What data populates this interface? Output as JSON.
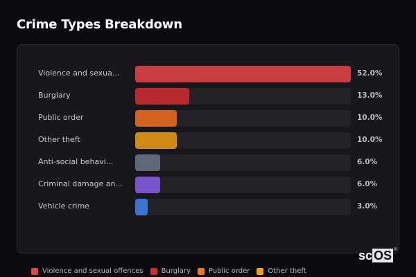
{
  "header": {
    "title": "Crime Types Breakdown"
  },
  "chart_data": {
    "type": "bar",
    "orientation": "horizontal",
    "title": "Crime Types Breakdown",
    "xlabel": "",
    "ylabel": "",
    "xlim": [
      0,
      52
    ],
    "categories": [
      "Violence and sexua...",
      "Burglary",
      "Public order",
      "Other theft",
      "Anti-social behavi...",
      "Criminal damage an...",
      "Vehicle crime"
    ],
    "values": [
      52.0,
      13.0,
      10.0,
      10.0,
      6.0,
      6.0,
      3.0
    ],
    "value_labels": [
      "52.0%",
      "13.0%",
      "10.0%",
      "10.0%",
      "6.0%",
      "6.0%",
      "3.0%"
    ],
    "colors": [
      "#c93c40",
      "#b8282c",
      "#d2621e",
      "#d08a14",
      "#5f6878",
      "#7a52cc",
      "#3a74d4"
    ],
    "legend": [
      "Violence and sexual offences",
      "Burglary",
      "Public order",
      "Other theft"
    ],
    "legend_position": "bottom",
    "grid": false
  },
  "rows": [
    {
      "label": "Violence and sexua...",
      "pct": "52.0%",
      "value": 52.0,
      "color": "#c93c40"
    },
    {
      "label": "Burglary",
      "pct": "13.0%",
      "value": 13.0,
      "color": "#b8282c"
    },
    {
      "label": "Public order",
      "pct": "10.0%",
      "value": 10.0,
      "color": "#d2621e"
    },
    {
      "label": "Other theft",
      "pct": "10.0%",
      "value": 10.0,
      "color": "#d08a14"
    },
    {
      "label": "Anti-social behavi...",
      "pct": "6.0%",
      "value": 6.0,
      "color": "#5f6878"
    },
    {
      "label": "Criminal damage an...",
      "pct": "6.0%",
      "value": 6.0,
      "color": "#7a52cc"
    },
    {
      "label": "Vehicle crime",
      "pct": "3.0%",
      "value": 3.0,
      "color": "#3a74d4"
    }
  ],
  "legend": [
    {
      "label": "Violence and sexual offences",
      "color": "#e0464a"
    },
    {
      "label": "Burglary",
      "color": "#d42a2e"
    },
    {
      "label": "Public order",
      "color": "#ee7a1e"
    },
    {
      "label": "Other theft",
      "color": "#f2a014"
    }
  ],
  "logo": {
    "main": "sc",
    "boxed": "OS",
    "mark": "®"
  }
}
